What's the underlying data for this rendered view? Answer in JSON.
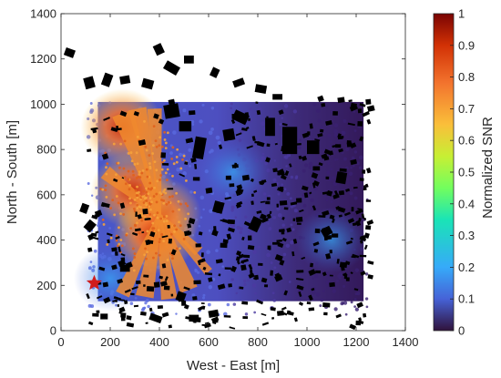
{
  "chart_data": {
    "type": "heatmap",
    "xlabel": "West - East [m]",
    "ylabel": "North - South [m]",
    "colorbar_label": "Normalized SNR",
    "xlim": [
      0,
      1400
    ],
    "ylim": [
      0,
      1400
    ],
    "xticks": [
      "0",
      "200",
      "400",
      "600",
      "800",
      "1000",
      "1200",
      "1400"
    ],
    "yticks": [
      "0",
      "200",
      "400",
      "600",
      "800",
      "1000",
      "1200",
      "1400"
    ],
    "clim": [
      0,
      1
    ],
    "colorbar_ticks": [
      "0",
      "0.1",
      "0.2",
      "0.3",
      "0.4",
      "0.5",
      "0.6",
      "0.7",
      "0.8",
      "0.9",
      "1"
    ],
    "colormap": [
      "#30123b",
      "#4662d7",
      "#36aaf9",
      "#1ae4b6",
      "#72fe5e",
      "#c7ef34",
      "#fabf3a",
      "#f3742e",
      "#d23105",
      "#7a0403"
    ],
    "grid": false,
    "measurement_region": {
      "x": [
        150,
        1230
      ],
      "y": [
        130,
        1010
      ]
    },
    "transmitter": {
      "x": 135,
      "y": 210,
      "marker": "star",
      "color": "#d01c1c"
    },
    "snr_hotspots": [
      {
        "x": 400,
        "y": 510,
        "snr": 0.8
      },
      {
        "x": 290,
        "y": 620,
        "snr": 0.75
      },
      {
        "x": 250,
        "y": 900,
        "snr": 0.7
      },
      {
        "x": 380,
        "y": 420,
        "snr": 0.75
      },
      {
        "x": 200,
        "y": 230,
        "snr": 0.2
      },
      {
        "x": 700,
        "y": 700,
        "snr": 0.15
      },
      {
        "x": 1100,
        "y": 400,
        "snr": 0.05
      }
    ]
  }
}
